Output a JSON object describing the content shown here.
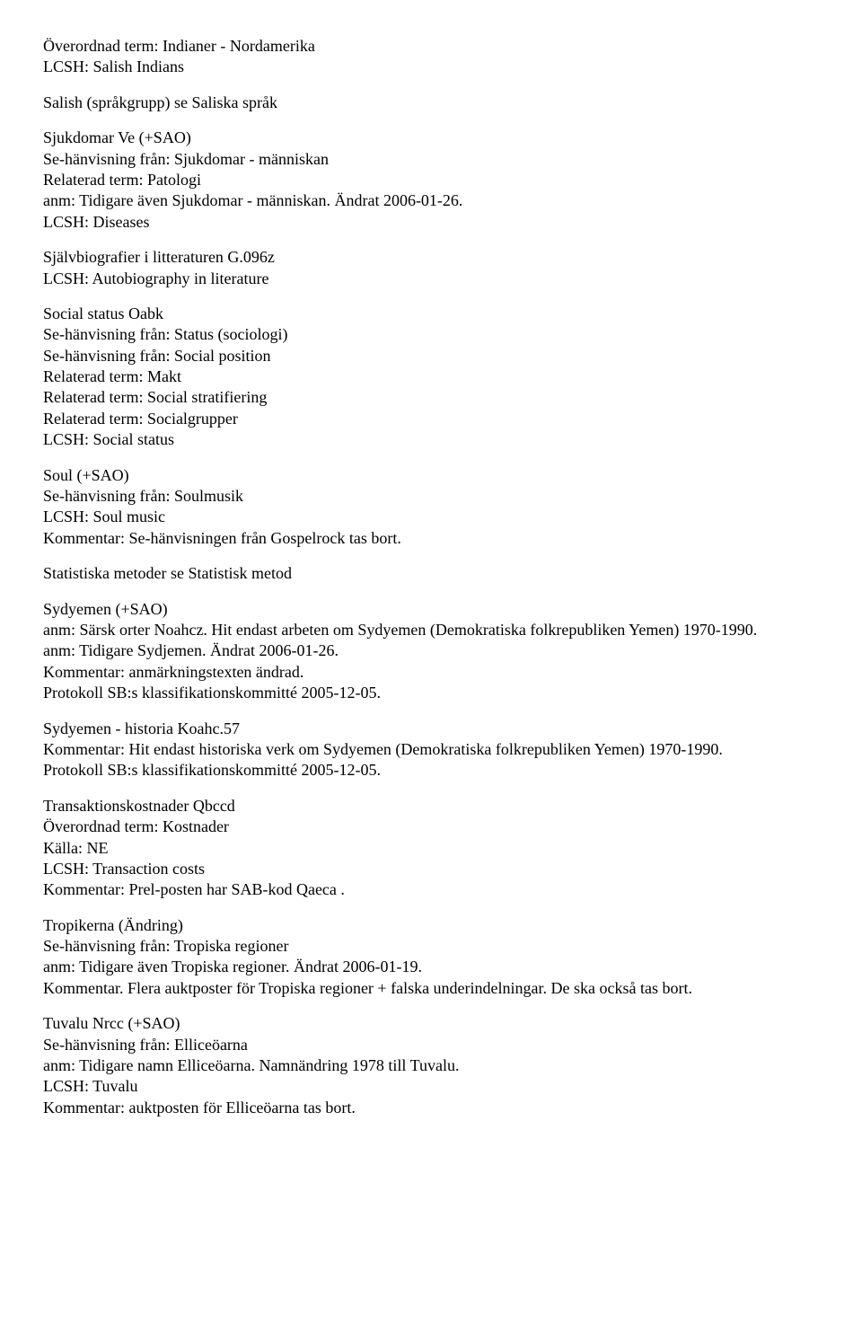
{
  "entries": [
    {
      "lines": [
        "Överordnad term: Indianer - Nordamerika",
        "LCSH: Salish Indians"
      ]
    },
    {
      "lines": [
        "Salish (språkgrupp) se Saliska språk"
      ]
    },
    {
      "lines": [
        "Sjukdomar Ve (+SAO)",
        "Se-hänvisning från: Sjukdomar - människan",
        "Relaterad term: Patologi",
        "anm: Tidigare även Sjukdomar - människan. Ändrat 2006-01-26.",
        "LCSH: Diseases"
      ]
    },
    {
      "lines": [
        "Självbiografier i litteraturen G.096z",
        "LCSH: Autobiography in literature"
      ]
    },
    {
      "lines": [
        "Social status Oabk",
        "Se-hänvisning från: Status (sociologi)",
        "Se-hänvisning från: Social position",
        "Relaterad term: Makt",
        "Relaterad term: Social stratifiering",
        "Relaterad term: Socialgrupper",
        "LCSH: Social status"
      ]
    },
    {
      "lines": [
        "Soul (+SAO)",
        "Se-hänvisning från: Soulmusik",
        "LCSH: Soul music",
        "Kommentar: Se-hänvisningen från Gospelrock tas bort."
      ]
    },
    {
      "lines": [
        "Statistiska metoder se Statistisk metod"
      ]
    },
    {
      "lines": [
        "Sydyemen (+SAO)",
        "anm: Särsk orter Noahcz. Hit endast arbeten om Sydyemen (Demokratiska folkrepubliken Yemen) 1970-1990.",
        "anm: Tidigare Sydjemen. Ändrat 2006-01-26.",
        "Kommentar: anmärkningstexten ändrad.",
        "Protokoll SB:s klassifikationskommitté 2005-12-05."
      ]
    },
    {
      "lines": [
        "Sydyemen - historia Koahc.57",
        "Kommentar: Hit endast historiska verk om Sydyemen (Demokratiska folkrepubliken Yemen) 1970-1990.",
        "Protokoll SB:s klassifikationskommitté 2005-12-05."
      ]
    },
    {
      "lines": [
        "Transaktionskostnader Qbccd",
        "Överordnad term: Kostnader",
        "Källa: NE",
        "LCSH: Transaction costs",
        "Kommentar: Prel-posten har SAB-kod Qaeca ."
      ]
    },
    {
      "lines": [
        "Tropikerna (Ändring)",
        "Se-hänvisning från: Tropiska regioner",
        "anm: Tidigare även Tropiska regioner. Ändrat 2006-01-19.",
        "Kommentar. Flera auktposter för Tropiska regioner + falska underindelningar. De ska också tas bort."
      ]
    },
    {
      "lines": [
        "Tuvalu Nrcc (+SAO)",
        "Se-hänvisning från: Elliceöarna",
        "anm: Tidigare namn Elliceöarna. Namnändring 1978 till Tuvalu.",
        "LCSH: Tuvalu",
        "Kommentar: auktposten för Elliceöarna tas bort."
      ]
    }
  ]
}
